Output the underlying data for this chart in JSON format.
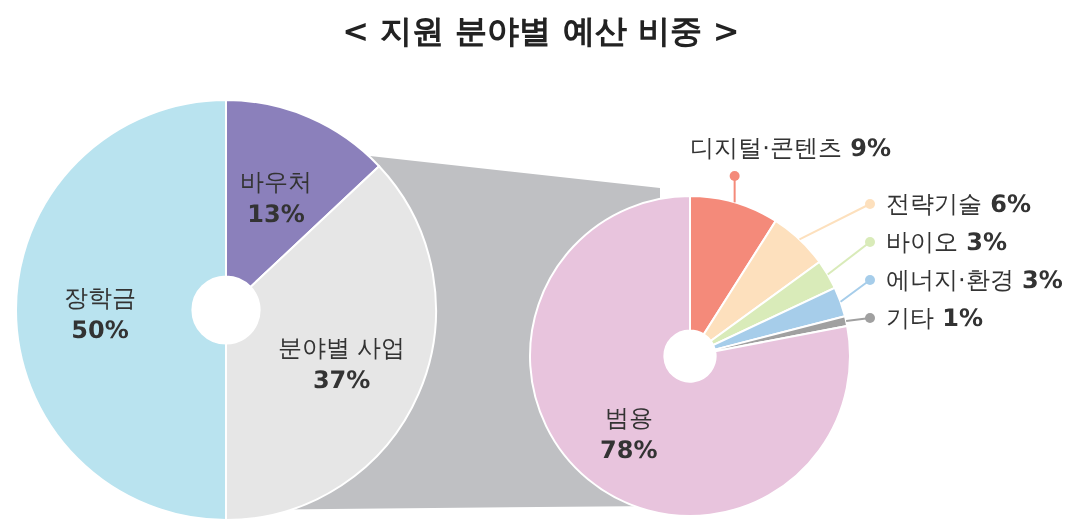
{
  "chart_data": [
    {
      "type": "donut",
      "title": "< 지원 분야별 예산 비중 >",
      "categories": [
        "바우처",
        "분야별 사업",
        "장학금"
      ],
      "values": [
        13,
        37,
        50
      ],
      "value_labels": [
        "13%",
        "37%",
        "50%"
      ],
      "colors": [
        "#8b80bb",
        "#e6e6e6",
        "#b9e3ef"
      ]
    },
    {
      "type": "donut",
      "legend": "right",
      "categories": [
        "디지털·콘텐츠",
        "전략기술",
        "바이오",
        "에너지·환경",
        "기타",
        "범용"
      ],
      "values": [
        9,
        6,
        3,
        3,
        1,
        78
      ],
      "value_labels": [
        "9%",
        "6%",
        "3%",
        "3%",
        "1%",
        "78%"
      ],
      "colors": [
        "#f48a7a",
        "#fde0bd",
        "#d9ebb9",
        "#a6cdea",
        "#a0a0a0",
        "#e8c4dd"
      ]
    }
  ]
}
